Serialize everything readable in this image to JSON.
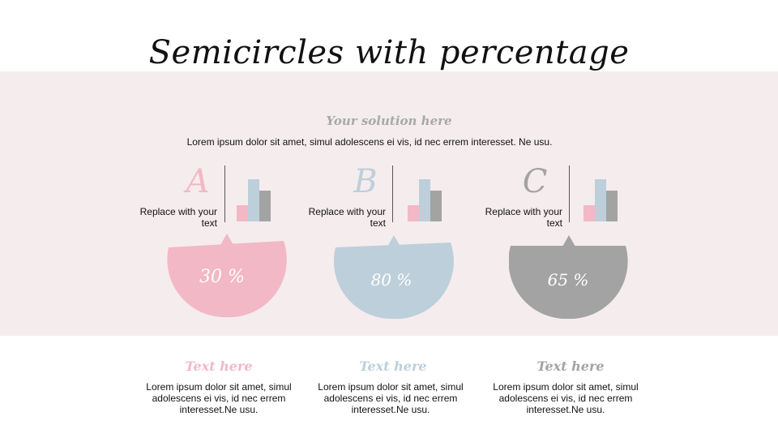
{
  "slide": {
    "title": "Semicircles with percentage",
    "subtitle": "Your solution here",
    "intro": "Lorem ipsum dolor sit amet, simul adolescens ei vis, id nec errem interesset. Ne usu."
  },
  "colors": {
    "A": "#f2b8c6",
    "B": "#bdcfda",
    "C": "#a3a3a3",
    "band": "#f5ecee"
  },
  "items": [
    {
      "letter": "A",
      "label": "Replace with your text",
      "percent": "30 %",
      "heading": "Text here",
      "body": "Lorem ipsum dolor sit amet, simul adolescens ei vis, id nec errem interesset.Ne usu."
    },
    {
      "letter": "B",
      "label": "Replace with your text",
      "percent": "80 %",
      "heading": "Text here",
      "body": "Lorem ipsum dolor sit amet, simul adolescens ei vis, id nec errem interesset.Ne usu."
    },
    {
      "letter": "C",
      "label": "Replace with your text",
      "percent": "65 %",
      "heading": "Text here",
      "body": "Lorem ipsum dolor sit amet, simul adolescens ei vis, id nec errem interesset.Ne usu."
    }
  ]
}
